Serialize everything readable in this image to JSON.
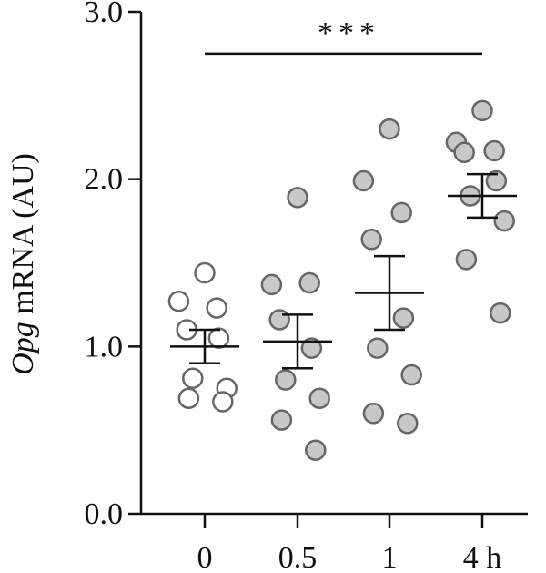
{
  "chart_data": {
    "type": "scatter",
    "ylabel_italic": "Opg",
    "ylabel_rest": " mRNA (AU)",
    "categories": [
      "0",
      "0.5",
      "1",
      "4 h"
    ],
    "yticks": [
      "0.0",
      "1.0",
      "2.0",
      "3.0"
    ],
    "ylim": [
      0,
      3
    ],
    "grid": false,
    "groups": [
      {
        "category": "0",
        "fill": "#ffffff",
        "values": [
          1.44,
          1.27,
          1.23,
          1.1,
          1.05,
          0.81,
          0.75,
          0.69,
          0.67
        ],
        "mean": 1.0,
        "sem": 0.1
      },
      {
        "category": "0.5",
        "fill": "#c8c8c8",
        "values": [
          1.89,
          1.37,
          1.38,
          1.16,
          0.99,
          0.8,
          0.69,
          0.56,
          0.38
        ],
        "mean": 1.03,
        "sem": 0.16
      },
      {
        "category": "1",
        "fill": "#c8c8c8",
        "values": [
          2.3,
          1.99,
          1.8,
          1.64,
          1.17,
          0.99,
          0.83,
          0.6,
          0.54
        ],
        "mean": 1.32,
        "sem": 0.22
      },
      {
        "category": "4 h",
        "fill": "#c8c8c8",
        "values": [
          2.41,
          2.22,
          2.17,
          2.16,
          1.99,
          1.9,
          1.75,
          1.52,
          1.2
        ],
        "mean": 1.9,
        "sem": 0.13
      }
    ],
    "significance": {
      "from": "0.5",
      "to": "4 h",
      "y": 2.75,
      "label": "***"
    }
  },
  "colors": {
    "marker_edge": "#666666",
    "axis": "#111111",
    "background": "#ffffff"
  }
}
